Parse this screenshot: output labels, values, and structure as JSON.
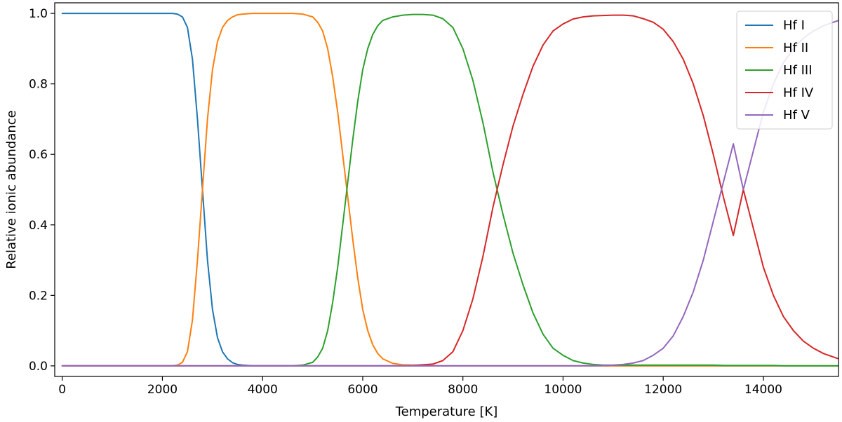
{
  "chart_data": {
    "type": "line",
    "xlabel": "Temperature [K]",
    "ylabel": "Relative ionic abundance",
    "xlim": [
      -150,
      15500
    ],
    "ylim": [
      -0.03,
      1.03
    ],
    "xticks": [
      0,
      2000,
      4000,
      6000,
      8000,
      10000,
      12000,
      14000
    ],
    "xtick_labels": [
      "0",
      "2000",
      "4000",
      "6000",
      "8000",
      "10000",
      "12000",
      "14000"
    ],
    "yticks": [
      0.0,
      0.2,
      0.4,
      0.6,
      0.8,
      1.0
    ],
    "ytick_labels": [
      "0.0",
      "0.2",
      "0.4",
      "0.6",
      "0.8",
      "1.0"
    ],
    "grid": false,
    "legend_position": "top-right",
    "x": [
      0,
      1000,
      1500,
      2000,
      2200,
      2300,
      2400,
      2500,
      2600,
      2700,
      2800,
      2900,
      3000,
      3100,
      3200,
      3300,
      3400,
      3500,
      3600,
      3800,
      4000,
      4200,
      4400,
      4600,
      4800,
      5000,
      5100,
      5200,
      5300,
      5400,
      5500,
      5600,
      5700,
      5800,
      5900,
      6000,
      6100,
      6200,
      6300,
      6400,
      6600,
      6800,
      7000,
      7200,
      7400,
      7600,
      7800,
      8000,
      8200,
      8400,
      8600,
      8800,
      9000,
      9200,
      9400,
      9600,
      9800,
      10000,
      10200,
      10400,
      10600,
      10800,
      11000,
      11200,
      11400,
      11600,
      11800,
      12000,
      12200,
      12400,
      12600,
      12800,
      13000,
      13200,
      13400,
      13600,
      13800,
      14000,
      14200,
      14400,
      14600,
      14800,
      15000,
      15200,
      15500
    ],
    "series": [
      {
        "name": "Hf I",
        "color": "#1f77b4",
        "values": [
          1.0,
          1.0,
          1.0,
          1.0,
          1.0,
          0.998,
          0.99,
          0.96,
          0.87,
          0.7,
          0.5,
          0.3,
          0.16,
          0.08,
          0.04,
          0.02,
          0.009,
          0.004,
          0.002,
          0.0,
          0.0,
          0.0,
          0.0,
          0.0,
          0.0,
          0.0,
          0.0,
          0.0,
          0.0,
          0.0,
          0.0,
          0.0,
          0.0,
          0.0,
          0.0,
          0.0,
          0.0,
          0.0,
          0.0,
          0.0,
          0.0,
          0.0,
          0.0,
          0.0,
          0.0,
          0.0,
          0.0,
          0.0,
          0.0,
          0.0,
          0.0,
          0.0,
          0.0,
          0.0,
          0.0,
          0.0,
          0.0,
          0.0,
          0.0,
          0.0,
          0.0,
          0.0,
          0.0,
          0.0,
          0.0,
          0.0,
          0.0,
          0.0,
          0.0,
          0.0,
          0.0,
          0.0,
          0.0,
          0.0,
          0.0,
          0.0,
          0.0,
          0.0,
          0.0,
          0.0,
          0.0,
          0.0,
          0.0,
          0.0,
          0.0
        ]
      },
      {
        "name": "Hf II",
        "color": "#ff7f0e",
        "values": [
          0.0,
          0.0,
          0.0,
          0.0,
          0.0,
          0.002,
          0.01,
          0.04,
          0.13,
          0.3,
          0.5,
          0.7,
          0.84,
          0.92,
          0.96,
          0.98,
          0.99,
          0.996,
          0.998,
          1.0,
          1.0,
          1.0,
          1.0,
          1.0,
          0.998,
          0.99,
          0.975,
          0.95,
          0.9,
          0.82,
          0.72,
          0.6,
          0.48,
          0.36,
          0.25,
          0.16,
          0.1,
          0.06,
          0.035,
          0.02,
          0.007,
          0.003,
          0.002,
          0.002,
          0.0,
          0.0,
          0.0,
          0.0,
          0.0,
          0.0,
          0.0,
          0.0,
          0.0,
          0.0,
          0.0,
          0.0,
          0.0,
          0.0,
          0.0,
          0.0,
          0.0,
          0.0,
          0.0,
          0.0,
          0.0,
          0.0,
          0.0,
          0.0,
          0.0,
          0.0,
          0.0,
          0.0,
          0.0,
          0.0,
          0.0,
          0.0,
          0.0,
          0.0,
          0.0,
          0.0,
          0.0,
          0.0,
          0.0,
          0.0,
          0.0
        ]
      },
      {
        "name": "Hf III",
        "color": "#2ca02c",
        "values": [
          0.0,
          0.0,
          0.0,
          0.0,
          0.0,
          0.0,
          0.0,
          0.0,
          0.0,
          0.0,
          0.0,
          0.0,
          0.0,
          0.0,
          0.0,
          0.0,
          0.0,
          0.0,
          0.0,
          0.0,
          0.0,
          0.0,
          0.0,
          0.0,
          0.002,
          0.01,
          0.025,
          0.05,
          0.1,
          0.18,
          0.28,
          0.4,
          0.52,
          0.64,
          0.75,
          0.84,
          0.9,
          0.94,
          0.965,
          0.98,
          0.99,
          0.995,
          0.997,
          0.997,
          0.995,
          0.985,
          0.96,
          0.9,
          0.81,
          0.69,
          0.55,
          0.43,
          0.32,
          0.23,
          0.15,
          0.09,
          0.05,
          0.03,
          0.015,
          0.008,
          0.004,
          0.002,
          0.002,
          0.002,
          0.002,
          0.002,
          0.002,
          0.002,
          0.002,
          0.002,
          0.002,
          0.002,
          0.002,
          0.001,
          0.001,
          0.001,
          0.001,
          0.001,
          0.001,
          0.0,
          0.0,
          0.0,
          0.0,
          0.0,
          0.0
        ]
      },
      {
        "name": "Hf IV",
        "color": "#d62728",
        "values": [
          0.0,
          0.0,
          0.0,
          0.0,
          0.0,
          0.0,
          0.0,
          0.0,
          0.0,
          0.0,
          0.0,
          0.0,
          0.0,
          0.0,
          0.0,
          0.0,
          0.0,
          0.0,
          0.0,
          0.0,
          0.0,
          0.0,
          0.0,
          0.0,
          0.0,
          0.0,
          0.0,
          0.0,
          0.0,
          0.0,
          0.0,
          0.0,
          0.0,
          0.0,
          0.0,
          0.0,
          0.0,
          0.0,
          0.0,
          0.0,
          0.0,
          0.0,
          0.001,
          0.003,
          0.005,
          0.015,
          0.04,
          0.1,
          0.19,
          0.31,
          0.45,
          0.57,
          0.68,
          0.77,
          0.85,
          0.91,
          0.95,
          0.97,
          0.984,
          0.99,
          0.993,
          0.994,
          0.995,
          0.995,
          0.993,
          0.985,
          0.975,
          0.955,
          0.92,
          0.87,
          0.8,
          0.71,
          0.6,
          0.48,
          0.37,
          0.5,
          0.39,
          0.28,
          0.2,
          0.14,
          0.1,
          0.07,
          0.05,
          0.035,
          0.02
        ]
      },
      {
        "name": "Hf V",
        "color": "#9467bd",
        "values": [
          0.0,
          0.0,
          0.0,
          0.0,
          0.0,
          0.0,
          0.0,
          0.0,
          0.0,
          0.0,
          0.0,
          0.0,
          0.0,
          0.0,
          0.0,
          0.0,
          0.0,
          0.0,
          0.0,
          0.0,
          0.0,
          0.0,
          0.0,
          0.0,
          0.0,
          0.0,
          0.0,
          0.0,
          0.0,
          0.0,
          0.0,
          0.0,
          0.0,
          0.0,
          0.0,
          0.0,
          0.0,
          0.0,
          0.0,
          0.0,
          0.0,
          0.0,
          0.0,
          0.0,
          0.0,
          0.0,
          0.0,
          0.0,
          0.0,
          0.0,
          0.0,
          0.0,
          0.0,
          0.0,
          0.0,
          0.0,
          0.0,
          0.0,
          0.0,
          0.0,
          0.0,
          0.001,
          0.002,
          0.004,
          0.008,
          0.015,
          0.03,
          0.05,
          0.085,
          0.14,
          0.21,
          0.3,
          0.41,
          0.52,
          0.63,
          0.5,
          0.61,
          0.72,
          0.8,
          0.86,
          0.9,
          0.93,
          0.95,
          0.965,
          0.98
        ]
      }
    ]
  }
}
